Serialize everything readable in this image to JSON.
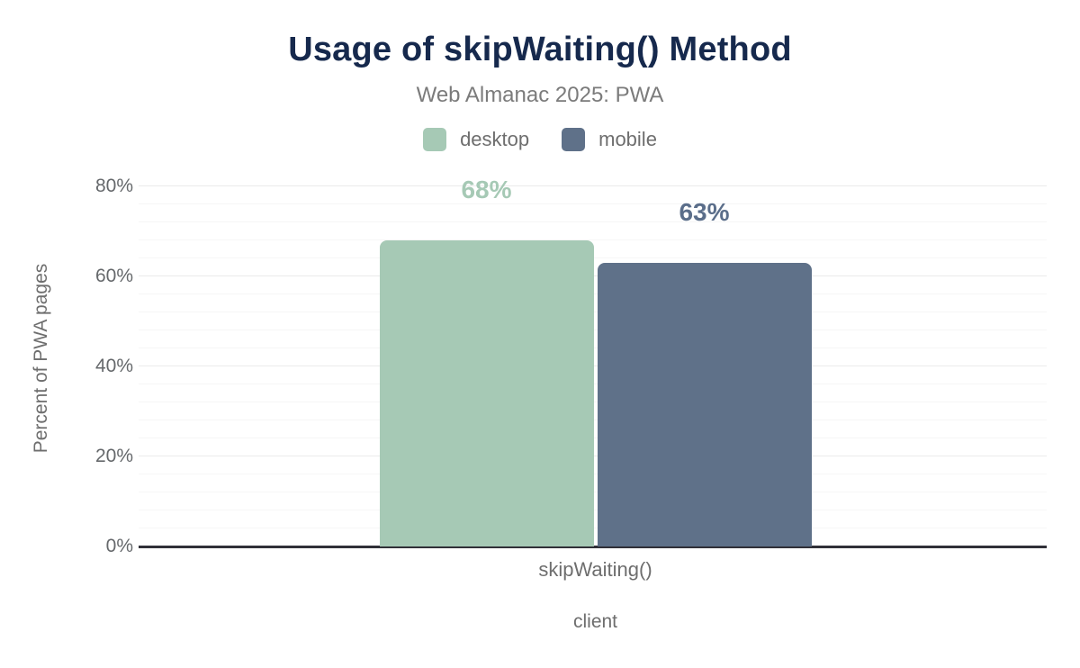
{
  "chart_data": {
    "type": "bar",
    "title": "Usage of skipWaiting() Method",
    "subtitle": "Web Almanac 2025: PWA",
    "categories": [
      "skipWaiting()"
    ],
    "series": [
      {
        "name": "desktop",
        "values": [
          68
        ],
        "color": "#a6c9b5",
        "label_color": "#a6c9b5"
      },
      {
        "name": "mobile",
        "values": [
          63
        ],
        "color": "#5f7189",
        "label_color": "#5b6e8a"
      }
    ],
    "xlabel": "client",
    "ylabel": "Percent of PWA pages",
    "ylim": [
      0,
      84
    ],
    "yticks": [
      0,
      20,
      40,
      60,
      80
    ],
    "minor_tick_step": 4,
    "tick_suffix": "%",
    "value_label_suffix": "%",
    "grid": "on",
    "legend_position": "top",
    "colors": {
      "title": "#16294d",
      "subtitle": "#7b7b7b",
      "axis_line": "#303038",
      "grid_major": "#ebebeb",
      "grid_minor": "#f6f6f6",
      "tick_text": "#66696c"
    }
  }
}
